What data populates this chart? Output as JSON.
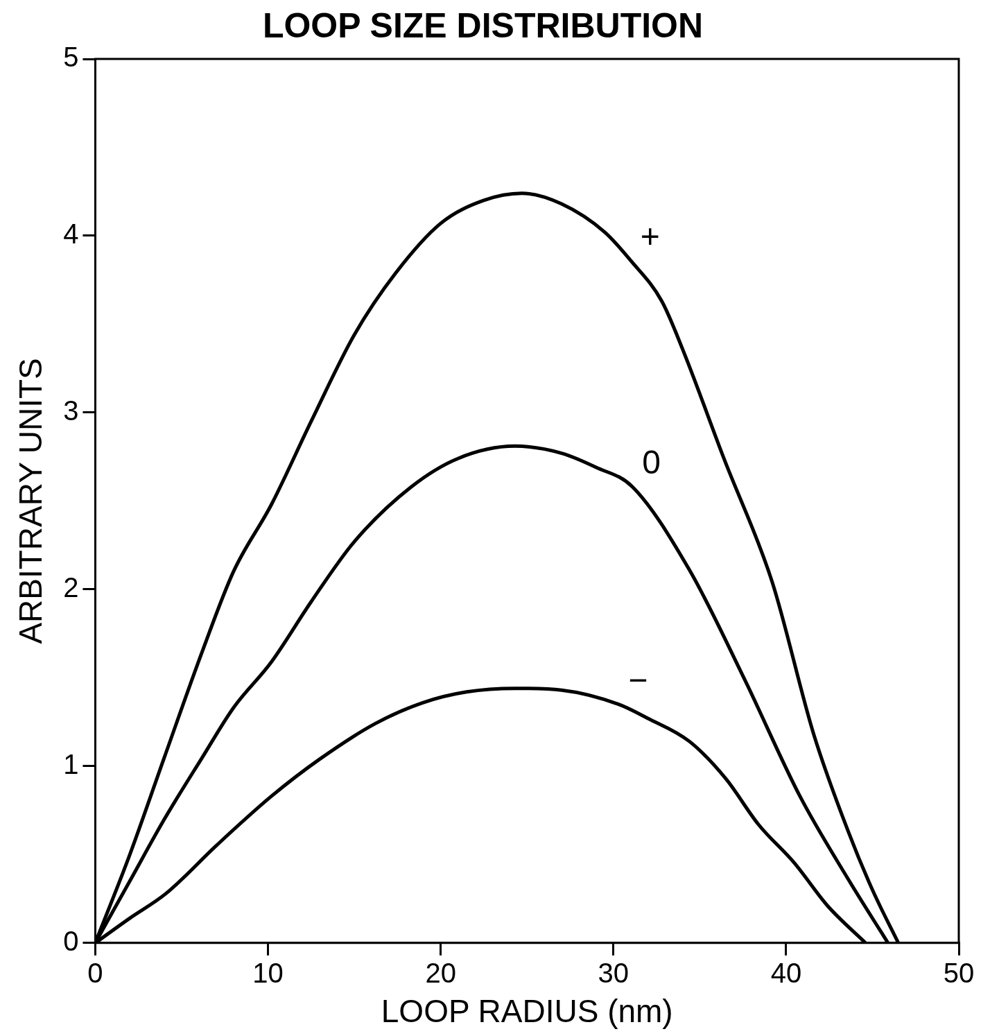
{
  "chart_data": {
    "type": "line",
    "title": "LOOP SIZE DISTRIBUTION",
    "xlabel": "LOOP RADIUS (nm)",
    "ylabel": "ARBITRARY UNITS",
    "xlim": [
      0,
      50
    ],
    "xticks": [
      0,
      10,
      20,
      30,
      40,
      50
    ],
    "ylim": [
      0,
      5
    ],
    "yticks": [
      0,
      1,
      2,
      3,
      4,
      5
    ],
    "grid": false,
    "legend": false,
    "marker": "none",
    "line_style": "solid",
    "series": [
      {
        "name": "+",
        "color": "#000000",
        "x": [
          0,
          2,
          4,
          6.2,
          8,
          10.2,
          12.5,
          15,
          17.4,
          20,
          22.5,
          24.7,
          27,
          29.5,
          31,
          32.8,
          34,
          36.4,
          39.2,
          41.6,
          43.6,
          45,
          46.5
        ],
        "values": [
          0,
          0.5,
          1.05,
          1.65,
          2.1,
          2.48,
          2.95,
          3.44,
          3.79,
          4.07,
          4.2,
          4.24,
          4.18,
          4.02,
          3.86,
          3.63,
          3.36,
          2.74,
          2.04,
          1.18,
          0.63,
          0.3,
          0
        ]
      },
      {
        "name": "0",
        "color": "#000000",
        "x": [
          0,
          2,
          4,
          6.2,
          8,
          10.2,
          12.5,
          15,
          18.3,
          21,
          24.3,
          27,
          29,
          31.1,
          34.4,
          37.6,
          40.8,
          43.6,
          45.9
        ],
        "values": [
          0,
          0.35,
          0.7,
          1.05,
          1.33,
          1.59,
          1.93,
          2.27,
          2.58,
          2.74,
          2.81,
          2.77,
          2.69,
          2.58,
          2.11,
          1.49,
          0.83,
          0.36,
          0
        ]
      },
      {
        "name": "−",
        "color": "#000000",
        "x": [
          0,
          2,
          4.1,
          7,
          10.2,
          13,
          16.2,
          19,
          21.5,
          24.3,
          27,
          30.3,
          32,
          34.4,
          36.5,
          38.4,
          40.5,
          42.4,
          44.6
        ],
        "values": [
          0,
          0.14,
          0.28,
          0.55,
          0.83,
          1.04,
          1.24,
          1.36,
          1.42,
          1.44,
          1.43,
          1.35,
          1.27,
          1.14,
          0.93,
          0.67,
          0.45,
          0.21,
          0
        ]
      }
    ]
  }
}
